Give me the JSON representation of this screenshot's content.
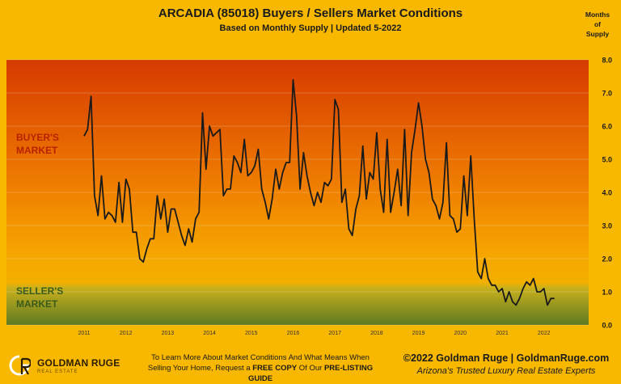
{
  "header": {
    "title": "ARCADIA (85018) Buyers / Sellers Market Conditions",
    "subtitle": "Based on Monthly Supply | Updated 5-2022",
    "axis_unit_lines": [
      "Months",
      "of",
      "Supply"
    ]
  },
  "zones": {
    "buyers_label": [
      "BUYER'S",
      "MARKET"
    ],
    "sellers_label": [
      "SELLER'S",
      "MARKET"
    ],
    "buyers_color": "#d63a00",
    "sellers_color": "#5e7a22",
    "line_color": "#1a1a1a"
  },
  "footer": {
    "logo_text": "GOLDMAN RUGE",
    "logo_sub": "REAL ESTATE",
    "cta_line1": "To Learn More About Market Conditions And What Means When",
    "cta_line2_pre": "Selling Your Home, Request a ",
    "cta_line2_bold1": "FREE COPY",
    "cta_line2_mid": " Of Our ",
    "cta_line2_bold2": "PRE-LISTING GUIDE",
    "copyright": "©2022 Goldman Ruge  |  GoldmanRuge.com",
    "tagline": "Arizona's Trusted Luxury Real Estate Experts"
  },
  "chart_data": {
    "type": "line",
    "title": "ARCADIA (85018) Buyers / Sellers Market Conditions",
    "subtitle": "Based on Monthly Supply | Updated 5-2022",
    "ylabel": "Months of Supply",
    "ylim": [
      0,
      8
    ],
    "y_ticks": [
      "0.0",
      "1.0",
      "2.0",
      "3.0",
      "4.0",
      "5.0",
      "6.0",
      "7.0",
      "8.0"
    ],
    "x_ticks": [
      "2011",
      "2012",
      "2013",
      "2014",
      "2015",
      "2016",
      "2017",
      "2018",
      "2019",
      "2020",
      "2021",
      "2022"
    ],
    "x_start": "2011-01",
    "grid": true,
    "series": [
      {
        "values": [
          5.7,
          5.9,
          6.9,
          3.9,
          3.3,
          4.5,
          3.2,
          3.4,
          3.3,
          3.1,
          4.3,
          3.1,
          4.4,
          4.1,
          2.8,
          2.8,
          2.0,
          1.9,
          2.3,
          2.6,
          2.6,
          3.9,
          3.2,
          3.8,
          2.8,
          3.5,
          3.5,
          3.1,
          2.7,
          2.4,
          2.9,
          2.5,
          3.2,
          3.4,
          6.4,
          4.7,
          6.0,
          5.7,
          5.8,
          5.9,
          3.9,
          4.1,
          4.1,
          5.1,
          4.9,
          4.6,
          5.6,
          4.5,
          4.6,
          4.8,
          5.3,
          4.1,
          3.7,
          3.2,
          3.8,
          4.7,
          4.1,
          4.6,
          4.9,
          4.9,
          7.4,
          6.3,
          4.1,
          5.2,
          4.5,
          4.0,
          3.6,
          4.0,
          3.7,
          4.3,
          4.2,
          4.4,
          6.8,
          6.5,
          3.7,
          4.1,
          2.9,
          2.7,
          3.5,
          3.9,
          5.4,
          3.8,
          4.6,
          4.4,
          5.8,
          4.1,
          3.4,
          5.6,
          3.4,
          4.0,
          4.7,
          3.6,
          5.9,
          3.3,
          5.2,
          5.9,
          6.7,
          6.0,
          5.0,
          4.6,
          3.8,
          3.6,
          3.2,
          3.7,
          5.5,
          3.3,
          3.2,
          2.8,
          2.9,
          4.5,
          3.3,
          5.1,
          3.2,
          1.6,
          1.4,
          2.0,
          1.4,
          1.2,
          1.2,
          1.0,
          1.1,
          0.7,
          1.0,
          0.7,
          0.6,
          0.8,
          1.1,
          1.3,
          1.2,
          1.4,
          1.0,
          1.0,
          1.1,
          0.6,
          0.8,
          0.8
        ]
      }
    ]
  }
}
